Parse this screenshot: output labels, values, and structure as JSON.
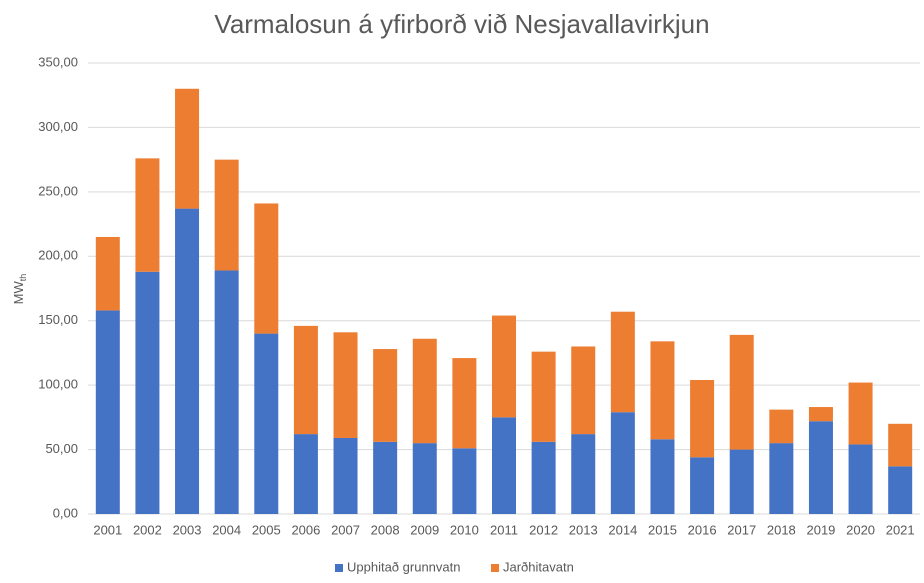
{
  "chart_data": {
    "type": "stacked_bar",
    "title": "Varmalosun á yfirborð við Nesjavallavirkjun",
    "y_label": "MW",
    "y_label_sub": "th",
    "categories": [
      "2001",
      "2002",
      "2003",
      "2004",
      "2005",
      "2006",
      "2007",
      "2008",
      "2009",
      "2010",
      "2011",
      "2012",
      "2013",
      "2014",
      "2015",
      "2016",
      "2017",
      "2018",
      "2019",
      "2020",
      "2021"
    ],
    "series": [
      {
        "name": "Upphitað grunnvatn",
        "color": "#4472c4",
        "values": [
          158,
          188,
          237,
          189,
          140,
          62,
          59,
          56,
          55,
          51,
          75,
          56,
          62,
          79,
          58,
          44,
          50,
          55,
          72,
          54,
          37
        ]
      },
      {
        "name": "Jarðhitavatn",
        "color": "#ed7d31",
        "values": [
          57,
          88,
          93,
          86,
          101,
          84,
          82,
          72,
          81,
          70,
          79,
          70,
          68,
          78,
          76,
          60,
          89,
          26,
          11,
          48,
          33
        ]
      }
    ],
    "ylim": [
      0,
      350
    ],
    "yticks": [
      {
        "value": 0,
        "label": "0,00"
      },
      {
        "value": 50,
        "label": "50,00"
      },
      {
        "value": 100,
        "label": "100,00"
      },
      {
        "value": 150,
        "label": "150,00"
      },
      {
        "value": 200,
        "label": "200,00"
      },
      {
        "value": 250,
        "label": "250,00"
      },
      {
        "value": 300,
        "label": "300,00"
      },
      {
        "value": 350,
        "label": "350,00"
      }
    ],
    "grid": true,
    "legend": "bottom"
  }
}
